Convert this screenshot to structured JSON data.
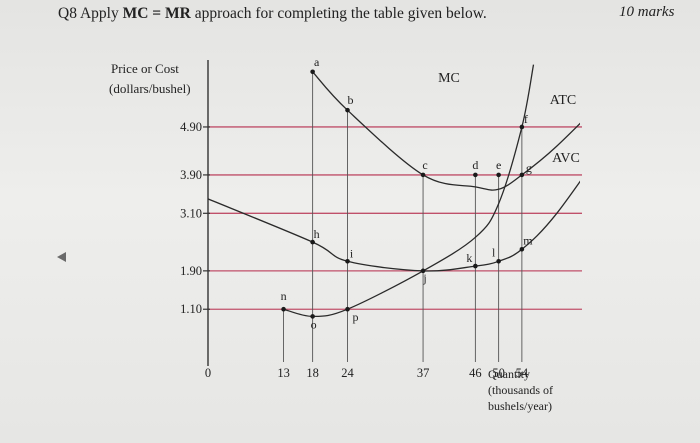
{
  "header": {
    "question_prefix": "Q8 Apply",
    "question_bold": "MC = MR",
    "question_suffix": "approach for completing the table given below.",
    "marks": "10 marks"
  },
  "chart_data": {
    "type": "line",
    "ylabel_lines": [
      "Price or Cost",
      "(dollars/bushel)"
    ],
    "xlabel_lines": [
      "Quantity",
      "(thousands of",
      "bushels/year)"
    ],
    "origin_label": "0",
    "x_ticks": [
      13,
      18,
      24,
      37,
      46,
      50,
      54
    ],
    "y_ticks": [
      {
        "value": 1.1,
        "label": "1.10"
      },
      {
        "value": 1.9,
        "label": "1.90"
      },
      {
        "value": 3.1,
        "label": "3.10"
      },
      {
        "value": 3.9,
        "label": "3.90"
      },
      {
        "value": 4.9,
        "label": "4.90"
      }
    ],
    "price_lines": [
      1.1,
      1.9,
      3.1,
      3.9,
      4.9
    ],
    "xlim": [
      0,
      64
    ],
    "ylim": [
      0,
      6.4
    ],
    "series": [
      {
        "name": "MC",
        "color": "#2a2a2a",
        "points": [
          [
            13,
            1.1
          ],
          [
            18,
            0.95
          ],
          [
            24,
            1.1
          ],
          [
            37,
            1.9
          ],
          [
            46,
            2.6
          ],
          [
            50,
            3.3
          ],
          [
            54,
            4.9
          ],
          [
            56,
            6.2
          ]
        ]
      },
      {
        "name": "ATC",
        "color": "#2a2a2a",
        "points": [
          [
            18,
            6.05
          ],
          [
            24,
            5.25
          ],
          [
            37,
            3.9
          ],
          [
            46,
            3.65
          ],
          [
            50,
            3.6
          ],
          [
            54,
            3.9
          ],
          [
            60,
            4.5
          ],
          [
            70,
            5.7
          ]
        ]
      },
      {
        "name": "AVC",
        "color": "#2a2a2a",
        "points": [
          [
            0,
            3.4
          ],
          [
            18,
            2.5
          ],
          [
            24,
            2.1
          ],
          [
            37,
            1.9
          ],
          [
            46,
            2.0
          ],
          [
            50,
            2.1
          ],
          [
            54,
            2.35
          ],
          [
            60,
            3.1
          ],
          [
            70,
            4.8
          ]
        ]
      }
    ],
    "points": [
      {
        "label": "a",
        "x": 18,
        "y": 6.05
      },
      {
        "label": "b",
        "x": 24,
        "y": 5.25
      },
      {
        "label": "c",
        "x": 37,
        "y": 3.9
      },
      {
        "label": "d",
        "x": 46,
        "y": 3.9
      },
      {
        "label": "e",
        "x": 50,
        "y": 3.9
      },
      {
        "label": "f",
        "x": 54,
        "y": 4.9
      },
      {
        "label": "g",
        "x": 54,
        "y": 3.9
      },
      {
        "label": "h",
        "x": 18,
        "y": 2.5
      },
      {
        "label": "i",
        "x": 24,
        "y": 2.1
      },
      {
        "label": "j",
        "x": 37,
        "y": 1.9
      },
      {
        "label": "k",
        "x": 46,
        "y": 2.0
      },
      {
        "label": "l",
        "x": 50,
        "y": 2.1
      },
      {
        "label": "m",
        "x": 54,
        "y": 2.35
      },
      {
        "label": "n",
        "x": 13,
        "y": 1.1
      },
      {
        "label": "o",
        "x": 18,
        "y": 0.95
      },
      {
        "label": "p",
        "x": 24,
        "y": 1.1
      }
    ],
    "colors": {
      "price_lines": "#c0506a",
      "curves": "#2a2a2a",
      "axes": "#333333",
      "drops": "#555555"
    }
  }
}
